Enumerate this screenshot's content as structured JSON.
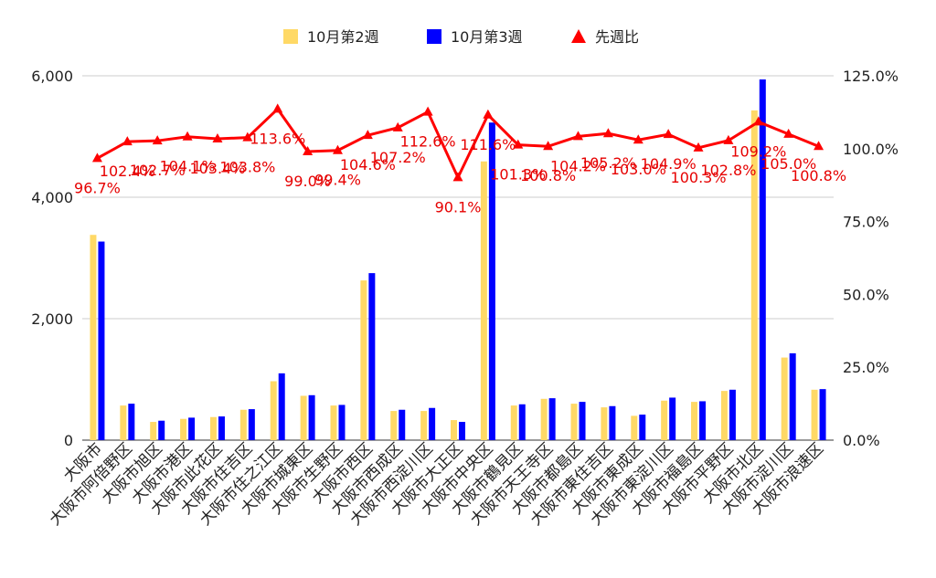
{
  "chart_data": {
    "type": "bar+line",
    "categories": [
      "大阪市",
      "大阪市阿倍野区",
      "大阪市旭区",
      "大阪市港区",
      "大阪市此花区",
      "大阪市住吉区",
      "大阪市住之江区",
      "大阪市城東区",
      "大阪市生野区",
      "大阪市西区",
      "大阪市西成区",
      "大阪市西淀川区",
      "大阪市大正区",
      "大阪市中央区",
      "大阪市鶴見区",
      "大阪市天王寺区",
      "大阪市都島区",
      "大阪市東住吉区",
      "大阪市東成区",
      "大阪市東淀川区",
      "大阪市福島区",
      "大阪市平野区",
      "大阪市北区",
      "大阪市淀川区",
      "大阪市浪速区"
    ],
    "series": [
      {
        "name": "10月第2週",
        "color": "#FFD966",
        "axis": "left",
        "values": [
          3380,
          570,
          300,
          350,
          380,
          500,
          970,
          730,
          570,
          2630,
          480,
          480,
          330,
          4590,
          570,
          680,
          600,
          540,
          400,
          650,
          630,
          810,
          5430,
          1360,
          830
        ]
      },
      {
        "name": "10月第3週",
        "color": "#0000FF",
        "axis": "left",
        "values": [
          3270,
          600,
          320,
          370,
          390,
          510,
          1100,
          740,
          580,
          2750,
          500,
          530,
          300,
          5230,
          590,
          690,
          630,
          560,
          420,
          700,
          640,
          830,
          5940,
          1430,
          840
        ]
      },
      {
        "name": "先週比",
        "color": "#FF0000",
        "axis": "right",
        "type": "line",
        "marker": "triangle",
        "values": [
          96.7,
          102.4,
          102.7,
          104.1,
          103.4,
          103.8,
          113.6,
          99.0,
          99.4,
          104.6,
          107.2,
          112.6,
          90.1,
          111.6,
          101.3,
          100.8,
          104.2,
          105.2,
          103.0,
          104.9,
          100.3,
          102.8,
          109.2,
          105.0,
          100.8
        ]
      }
    ],
    "data_labels": [
      "96.7%",
      "102.4%",
      "102.7%",
      "104.1%",
      "103.4%",
      "103.8%",
      "113.6%",
      "99.0%",
      "99.4%",
      "104.6%",
      "107.2%",
      "112.6%",
      "90.1%",
      "111.6%",
      "101.3%",
      "100.8%",
      "104.2%",
      "105.2%",
      "103.0%",
      "104.9%",
      "100.3%",
      "102.8%",
      "109.2%",
      "105.0%",
      "100.8%"
    ],
    "y_left": {
      "ticks": [
        "0",
        "2,000",
        "4,000",
        "6,000"
      ],
      "values": [
        0,
        2000,
        4000,
        6000
      ],
      "ylim": [
        0,
        6000
      ]
    },
    "y_right": {
      "ticks": [
        "0.0%",
        "25.0%",
        "50.0%",
        "75.0%",
        "100.0%",
        "125.0%"
      ],
      "values": [
        0,
        25,
        50,
        75,
        100,
        125
      ],
      "ylim": [
        0,
        125
      ]
    },
    "grid": true,
    "legend": "top"
  }
}
